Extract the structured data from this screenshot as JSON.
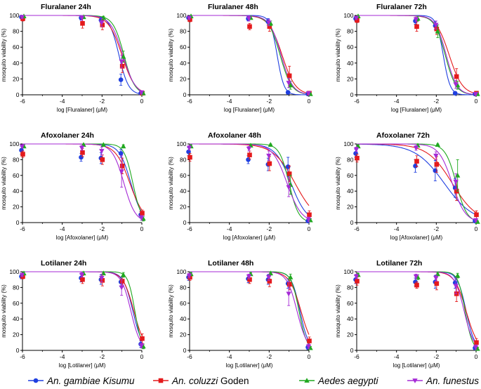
{
  "colors": {
    "An. gambiae Kisumu": "#1f3fe0",
    "An. coluzzi Goden": "#e41a1c",
    "Aedes aegypti": "#1fa81f",
    "An. funestus": "#a52ad6"
  },
  "legend": [
    {
      "label_italic": "An. gambiae Kisumu",
      "label_plain": "",
      "marker": "circle",
      "color_key": "An. gambiae Kisumu"
    },
    {
      "label_italic": "An. coluzzi",
      "label_plain": " Goden",
      "marker": "square",
      "color_key": "An. coluzzi Goden"
    },
    {
      "label_italic": "Aedes aegypti",
      "label_plain": "",
      "marker": "triangle-up",
      "color_key": "Aedes aegypti"
    },
    {
      "label_italic": "An. funestus",
      "label_plain": "",
      "marker": "triangle-down",
      "color_key": "An. funestus"
    }
  ],
  "chart_data": [
    {
      "type": "scatter",
      "title": "Fluralaner 24h",
      "xlabel": "log [Fluralaner] (μM)",
      "ylabel": "mosquito viability (%)",
      "xlim": [
        -6,
        0
      ],
      "ylim": [
        0,
        100
      ],
      "xticks": [
        -6,
        -4,
        -2,
        0
      ],
      "yticks": [
        0,
        20,
        40,
        60,
        80,
        100
      ],
      "x": [
        -6,
        -3,
        -2,
        -1,
        0
      ],
      "series": [
        {
          "name": "An. gambiae Kisumu",
          "values": [
            98,
            97,
            94,
            19,
            2
          ],
          "errors": [
            2,
            3,
            3,
            7,
            2
          ],
          "ic50": -1.15,
          "hill": 1.8
        },
        {
          "name": "An. coluzzi Goden",
          "values": [
            96,
            90,
            88,
            36,
            2
          ],
          "errors": [
            3,
            6,
            6,
            8,
            2
          ],
          "ic50": -1.0,
          "hill": 1.3
        },
        {
          "name": "Aedes aegypti",
          "values": [
            99,
            98,
            97,
            48,
            2
          ],
          "errors": [
            1,
            2,
            2,
            7,
            2
          ],
          "ic50": -0.9,
          "hill": 1.6
        },
        {
          "name": "An. funestus",
          "values": [
            98,
            97,
            91,
            42,
            3
          ],
          "errors": [
            2,
            3,
            5,
            8,
            2
          ],
          "ic50": -0.95,
          "hill": 1.4
        }
      ]
    },
    {
      "type": "scatter",
      "title": "Fluralaner 48h",
      "xlabel": "log [Fluralaner] (μM)",
      "ylabel": "mosquito viability (%)",
      "xlim": [
        -6,
        0
      ],
      "ylim": [
        0,
        100
      ],
      "xticks": [
        -6,
        -4,
        -2,
        0
      ],
      "yticks": [
        0,
        20,
        40,
        60,
        80,
        100
      ],
      "x": [
        -6,
        -3,
        -2,
        -1,
        0
      ],
      "series": [
        {
          "name": "An. gambiae Kisumu",
          "values": [
            97,
            96,
            92,
            3,
            1
          ],
          "errors": [
            2,
            3,
            4,
            2,
            1
          ],
          "ic50": -1.6,
          "hill": 2.5
        },
        {
          "name": "An. coluzzi Goden",
          "values": [
            95,
            86,
            86,
            24,
            2
          ],
          "errors": [
            3,
            4,
            6,
            12,
            2
          ],
          "ic50": -1.35,
          "hill": 1.3
        },
        {
          "name": "Aedes aegypti",
          "values": [
            99,
            97,
            90,
            12,
            1
          ],
          "errors": [
            1,
            2,
            3,
            5,
            1
          ],
          "ic50": -1.45,
          "hill": 1.5
        },
        {
          "name": "An. funestus",
          "values": [
            97,
            96,
            91,
            15,
            2
          ],
          "errors": [
            2,
            3,
            4,
            6,
            2
          ],
          "ic50": -1.4,
          "hill": 1.5
        }
      ]
    },
    {
      "type": "scatter",
      "title": "Fluralaner 72h",
      "xlabel": "log [Fluralaner] (μM)",
      "ylabel": "mosquito viability (%)",
      "xlim": [
        -6,
        0
      ],
      "ylim": [
        0,
        100
      ],
      "xticks": [
        -6,
        -4,
        -2,
        0
      ],
      "yticks": [
        0,
        20,
        40,
        60,
        80,
        100
      ],
      "x": [
        -6,
        -3,
        -2,
        -1,
        0
      ],
      "series": [
        {
          "name": "An. gambiae Kisumu",
          "values": [
            96,
            93,
            87,
            2,
            1
          ],
          "errors": [
            3,
            4,
            5,
            2,
            1
          ],
          "ic50": -1.65,
          "hill": 2.5
        },
        {
          "name": "An. coluzzi Goden",
          "values": [
            94,
            86,
            83,
            23,
            2
          ],
          "errors": [
            3,
            6,
            7,
            10,
            2
          ],
          "ic50": -1.35,
          "hill": 1.3
        },
        {
          "name": "Aedes aegypti",
          "values": [
            99,
            96,
            80,
            12,
            1
          ],
          "errors": [
            1,
            3,
            8,
            5,
            1
          ],
          "ic50": -1.55,
          "hill": 1.6
        },
        {
          "name": "An. funestus",
          "values": [
            97,
            95,
            88,
            13,
            1
          ],
          "errors": [
            2,
            3,
            5,
            5,
            1
          ],
          "ic50": -1.5,
          "hill": 1.6
        }
      ]
    },
    {
      "type": "scatter",
      "title": "Afoxolaner 24h",
      "xlabel": "log [Afoxolaner] (μM)",
      "ylabel": "mosquito viability (%)",
      "xlim": [
        -6,
        0
      ],
      "ylim": [
        0,
        100
      ],
      "xticks": [
        -6,
        -4,
        -2,
        0
      ],
      "yticks": [
        0,
        20,
        40,
        60,
        80,
        100
      ],
      "x": [
        -6,
        -3,
        -2,
        -1,
        0
      ],
      "series": [
        {
          "name": "An. gambiae Kisumu",
          "values": [
            92,
            83,
            82,
            88,
            10
          ],
          "errors": [
            5,
            5,
            7,
            5,
            4
          ],
          "ic50": -0.55,
          "hill": 1.5
        },
        {
          "name": "An. coluzzi Goden",
          "values": [
            87,
            89,
            80,
            72,
            12
          ],
          "errors": [
            4,
            5,
            6,
            10,
            4
          ],
          "ic50": -0.6,
          "hill": 1.2
        },
        {
          "name": "Aedes aegypti",
          "values": [
            97,
            99,
            99,
            97,
            5
          ],
          "errors": [
            2,
            1,
            1,
            2,
            3
          ],
          "ic50": -0.45,
          "hill": 2.0
        },
        {
          "name": "An. funestus",
          "values": [
            97,
            95,
            91,
            65,
            6
          ],
          "errors": [
            2,
            3,
            5,
            20,
            3
          ],
          "ic50": -0.9,
          "hill": 1.5
        }
      ]
    },
    {
      "type": "scatter",
      "title": "Afoxolaner 48h",
      "xlabel": "log [Afoxolaner] (μM)",
      "ylabel": "mosquito viability (%)",
      "xlim": [
        -6,
        0
      ],
      "ylim": [
        0,
        100
      ],
      "xticks": [
        -6,
        -4,
        -2,
        0
      ],
      "yticks": [
        0,
        20,
        40,
        60,
        80,
        100
      ],
      "x": [
        -6,
        -3,
        -2,
        -1,
        0
      ],
      "series": [
        {
          "name": "An. gambiae Kisumu",
          "values": [
            90,
            80,
            74,
            71,
            2
          ],
          "errors": [
            5,
            5,
            8,
            12,
            2
          ],
          "ic50": -0.9,
          "hill": 1.1
        },
        {
          "name": "An. coluzzi Goden",
          "values": [
            83,
            86,
            75,
            62,
            10
          ],
          "errors": [
            5,
            5,
            9,
            10,
            5
          ],
          "ic50": -0.7,
          "hill": 0.8
        },
        {
          "name": "Aedes aegypti",
          "values": [
            97,
            98,
            99,
            48,
            3
          ],
          "errors": [
            2,
            2,
            1,
            12,
            2
          ],
          "ic50": -1.0,
          "hill": 1.8
        },
        {
          "name": "An. funestus",
          "values": [
            95,
            94,
            85,
            45,
            4
          ],
          "errors": [
            3,
            3,
            6,
            12,
            3
          ],
          "ic50": -1.1,
          "hill": 1.2
        }
      ]
    },
    {
      "type": "scatter",
      "title": "Afoxolaner 72h",
      "xlabel": "log [Afoxolaner] (μM)",
      "ylabel": "mosquito viability (%)",
      "xlim": [
        -6,
        0
      ],
      "ylim": [
        0,
        100
      ],
      "xticks": [
        -6,
        -4,
        -2,
        0
      ],
      "yticks": [
        0,
        20,
        40,
        60,
        80,
        100
      ],
      "x": [
        -6,
        -3,
        -2,
        -1,
        0
      ],
      "series": [
        {
          "name": "An. gambiae Kisumu",
          "values": [
            88,
            72,
            66,
            44,
            2
          ],
          "errors": [
            5,
            8,
            13,
            12,
            2
          ],
          "ic50": -1.6,
          "hill": 0.6
        },
        {
          "name": "An. coluzzi Goden",
          "values": [
            82,
            78,
            74,
            40,
            10
          ],
          "errors": [
            5,
            7,
            10,
            12,
            5
          ],
          "ic50": -1.2,
          "hill": 0.7
        },
        {
          "name": "Aedes aegypti",
          "values": [
            97,
            98,
            99,
            60,
            1
          ],
          "errors": [
            2,
            2,
            1,
            20,
            1
          ],
          "ic50": -1.0,
          "hill": 1.6
        },
        {
          "name": "An. funestus",
          "values": [
            93,
            95,
            85,
            52,
            3
          ],
          "errors": [
            3,
            3,
            5,
            10,
            2
          ],
          "ic50": -1.2,
          "hill": 1.3
        }
      ]
    },
    {
      "type": "scatter",
      "title": "Lotilaner 24h",
      "xlabel": "log [Lotilaner] (μM)",
      "ylabel": "mosquito viability (%)",
      "xlim": [
        -6,
        0
      ],
      "ylim": [
        0,
        100
      ],
      "xticks": [
        -6,
        -4,
        -2,
        0
      ],
      "yticks": [
        0,
        20,
        40,
        60,
        80,
        100
      ],
      "x": [
        -6,
        -3,
        -2,
        -1,
        0
      ],
      "series": [
        {
          "name": "An. gambiae Kisumu",
          "values": [
            94,
            92,
            90,
            87,
            8
          ],
          "errors": [
            3,
            5,
            6,
            6,
            4
          ],
          "ic50": -0.45,
          "hill": 1.8
        },
        {
          "name": "An. coluzzi Goden",
          "values": [
            94,
            90,
            89,
            88,
            15
          ],
          "errors": [
            3,
            5,
            7,
            6,
            6
          ],
          "ic50": -0.4,
          "hill": 1.6
        },
        {
          "name": "Aedes aegypti",
          "values": [
            98,
            98,
            98,
            96,
            5
          ],
          "errors": [
            2,
            2,
            2,
            3,
            3
          ],
          "ic50": -0.35,
          "hill": 2.5
        },
        {
          "name": "An. funestus",
          "values": [
            96,
            96,
            92,
            80,
            6
          ],
          "errors": [
            2,
            3,
            5,
            10,
            3
          ],
          "ic50": -0.55,
          "hill": 1.8
        }
      ]
    },
    {
      "type": "scatter",
      "title": "Lotilaner 48h",
      "xlabel": "log [Lotilaner] (μM)",
      "ylabel": "mosquito viability (%)",
      "xlim": [
        -6,
        0
      ],
      "ylim": [
        0,
        100
      ],
      "xticks": [
        -6,
        -4,
        -2,
        0
      ],
      "yticks": [
        0,
        20,
        40,
        60,
        80,
        100
      ],
      "x": [
        -6,
        -3,
        -2,
        -1,
        0
      ],
      "series": [
        {
          "name": "An. gambiae Kisumu",
          "values": [
            93,
            91,
            90,
            85,
            4
          ],
          "errors": [
            4,
            5,
            6,
            6,
            3
          ],
          "ic50": -0.45,
          "hill": 2.0
        },
        {
          "name": "An. coluzzi Goden",
          "values": [
            93,
            90,
            88,
            84,
            12
          ],
          "errors": [
            4,
            5,
            7,
            7,
            5
          ],
          "ic50": -0.4,
          "hill": 1.5
        },
        {
          "name": "Aedes aegypti",
          "values": [
            97,
            97,
            98,
            93,
            3
          ],
          "errors": [
            2,
            2,
            2,
            4,
            2
          ],
          "ic50": -0.5,
          "hill": 2.2
        },
        {
          "name": "An. funestus",
          "values": [
            95,
            94,
            93,
            72,
            5
          ],
          "errors": [
            3,
            3,
            4,
            15,
            3
          ],
          "ic50": -0.6,
          "hill": 1.7
        }
      ]
    },
    {
      "type": "scatter",
      "title": "Lotilaner 72h",
      "xlabel": "log [Lotilaner] (μM)",
      "ylabel": "mosquito viability (%)",
      "xlim": [
        -6,
        0
      ],
      "ylim": [
        0,
        100
      ],
      "xticks": [
        -6,
        -4,
        -2,
        0
      ],
      "yticks": [
        0,
        20,
        40,
        60,
        80,
        100
      ],
      "x": [
        -6,
        -3,
        -2,
        -1,
        0
      ],
      "series": [
        {
          "name": "An. gambiae Kisumu",
          "values": [
            90,
            87,
            87,
            86,
            3
          ],
          "errors": [
            5,
            5,
            8,
            7,
            2
          ],
          "ic50": -0.5,
          "hill": 2.0
        },
        {
          "name": "An. coluzzi Goden",
          "values": [
            88,
            83,
            85,
            72,
            10
          ],
          "errors": [
            5,
            4,
            8,
            10,
            5
          ],
          "ic50": -0.5,
          "hill": 1.5
        },
        {
          "name": "Aedes aegypti",
          "values": [
            96,
            93,
            97,
            95,
            2
          ],
          "errors": [
            2,
            3,
            2,
            3,
            2
          ],
          "ic50": -0.55,
          "hill": 2.4
        },
        {
          "name": "An. funestus",
          "values": [
            94,
            94,
            92,
            82,
            4
          ],
          "errors": [
            3,
            3,
            4,
            10,
            3
          ],
          "ic50": -0.6,
          "hill": 1.8
        }
      ]
    }
  ]
}
